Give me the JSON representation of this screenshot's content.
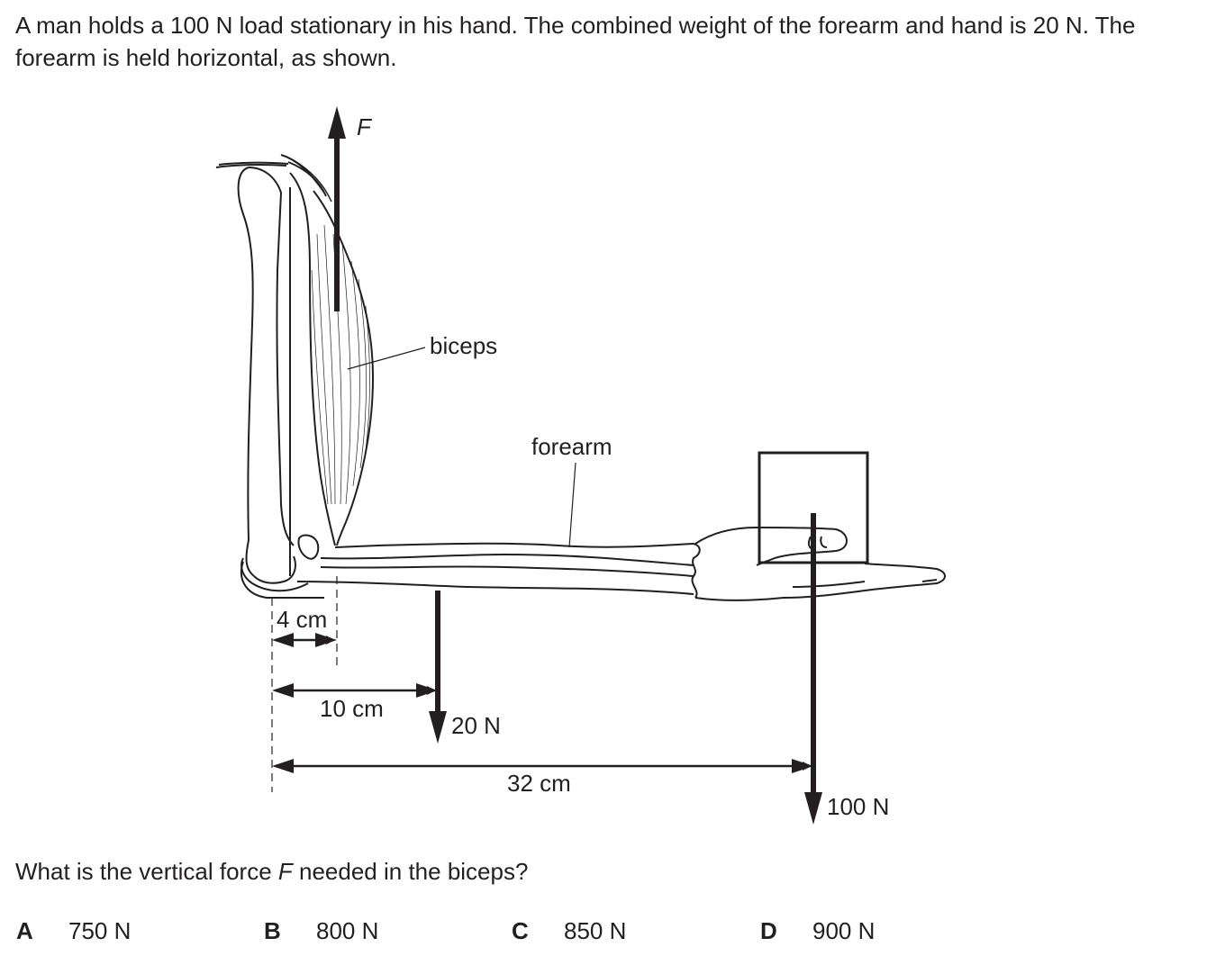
{
  "question": {
    "intro": "A man holds a 100 N load stationary in his hand. The combined weight of the forearm and hand is 20 N. The forearm is held horizontal, as shown.",
    "prompt_italic": "F",
    "prompt_before": "What is the vertical force ",
    "prompt_after": " needed in the biceps?"
  },
  "diagram": {
    "force_label": "F",
    "biceps_label": "biceps",
    "forearm_label": "forearm",
    "dim_4": "4 cm",
    "dim_10": "10 cm",
    "dim_32": "32 cm",
    "weight_20": "20 N",
    "weight_100": "100 N"
  },
  "options": [
    {
      "letter": "A",
      "value": "750 N"
    },
    {
      "letter": "B",
      "value": "800 N"
    },
    {
      "letter": "C",
      "value": "850 N"
    },
    {
      "letter": "D",
      "value": "900 N"
    }
  ]
}
